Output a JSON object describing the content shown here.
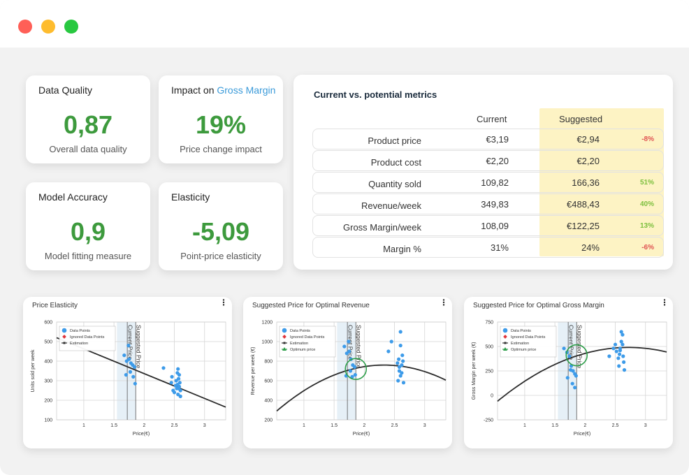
{
  "kpis": {
    "data_quality": {
      "title": "Data Quality",
      "value": "0,87",
      "subtitle": "Overall data quality"
    },
    "gross_margin_impact": {
      "title_prefix": "Impact on ",
      "title_accent": "Gross Margin",
      "value": "19%",
      "subtitle": "Price change impact"
    },
    "model_accuracy": {
      "title": "Model Accuracy",
      "value": "0,9",
      "subtitle": "Model fitting measure"
    },
    "elasticity": {
      "title": "Elasticity",
      "value": "-5,09",
      "subtitle": "Point-price elasticity"
    }
  },
  "metrics": {
    "title": "Current vs. potential metrics",
    "col_current": "Current",
    "col_suggested": "Suggested",
    "rows": [
      {
        "label": "Product price",
        "current": "€3,19",
        "suggested": "€2,94",
        "change": "-8%",
        "direction": "neg"
      },
      {
        "label": "Product cost",
        "current": "€2,20",
        "suggested": "€2,20",
        "change": "",
        "direction": ""
      },
      {
        "label": "Quantity sold",
        "current": "109,82",
        "suggested": "166,36",
        "change": "51%",
        "direction": "pos"
      },
      {
        "label": "Revenue/week",
        "current": "349,83",
        "suggested": "€488,43",
        "change": "40%",
        "direction": "pos"
      },
      {
        "label": "Gross Margin/week",
        "current": "108,09",
        "suggested": "€122,25",
        "change": "13%",
        "direction": "pos"
      },
      {
        "label": "Margin %",
        "current": "31%",
        "suggested": "24%",
        "change": "-6%",
        "direction": "neg"
      }
    ]
  },
  "legend": {
    "data_points": "Data Points",
    "ignored": "Ignored Data Points",
    "estimation": "Estimation",
    "optimum": "Optimum price"
  },
  "vline_labels": {
    "current": "Current Price",
    "suggested": "Suggested Price"
  },
  "colors": {
    "accent": "#3a9ad9",
    "kpi_green": "#3d9a3d",
    "points": "#3d9be9",
    "optimum": "#2e9e4a",
    "suggested_bg": "#fdf3c4"
  },
  "chart_data": [
    {
      "type": "scatter",
      "title": "Price Elasticity",
      "xlabel": "Price(€)",
      "ylabel": "Units sold per week",
      "xlim": [
        0.55,
        3.35
      ],
      "ylim": [
        100,
        600
      ],
      "xticks": [
        1,
        1.5,
        2,
        2.5,
        3
      ],
      "xtick_labels": [
        "1",
        "1.5",
        "2",
        "2.5",
        "3"
      ],
      "yticks": [
        100,
        200,
        300,
        400,
        500,
        600
      ],
      "ytick_labels": [
        "100",
        "200",
        "300",
        "400",
        "500",
        "600"
      ],
      "current_price": 1.72,
      "suggested_price": 1.86,
      "band": [
        1.55,
        1.86
      ],
      "legend_items": [
        "data_points",
        "ignored",
        "estimation"
      ],
      "points": [
        [
          1.67,
          430
        ],
        [
          1.71,
          400
        ],
        [
          1.75,
          410
        ],
        [
          1.78,
          390
        ],
        [
          1.81,
          380
        ],
        [
          1.84,
          370
        ],
        [
          1.7,
          330
        ],
        [
          1.77,
          345
        ],
        [
          1.82,
          320
        ],
        [
          1.85,
          285
        ],
        [
          1.74,
          480
        ],
        [
          2.32,
          365
        ],
        [
          2.45,
          290
        ],
        [
          2.48,
          250
        ],
        [
          2.5,
          240
        ],
        [
          2.52,
          275
        ],
        [
          2.53,
          300
        ],
        [
          2.54,
          260
        ],
        [
          2.55,
          280
        ],
        [
          2.56,
          230
        ],
        [
          2.57,
          310
        ],
        [
          2.58,
          270
        ],
        [
          2.59,
          290
        ],
        [
          2.6,
          250
        ],
        [
          2.56,
          360
        ],
        [
          2.58,
          330
        ],
        [
          2.55,
          340
        ],
        [
          2.57,
          260
        ],
        [
          2.6,
          220
        ],
        [
          2.46,
          320
        ]
      ],
      "estimation": [
        [
          0.55,
          520
        ],
        [
          3.35,
          165
        ]
      ]
    },
    {
      "type": "scatter",
      "title": "Suggested Price for Optimal Revenue",
      "xlabel": "Price(€)",
      "ylabel": "Revenue per week (€)",
      "xlim": [
        0.55,
        3.35
      ],
      "ylim": [
        200,
        1200
      ],
      "xticks": [
        1,
        1.5,
        2,
        2.5,
        3
      ],
      "xtick_labels": [
        "1",
        "1.5",
        "2",
        "2.5",
        "3"
      ],
      "yticks": [
        200,
        400,
        600,
        800,
        1000,
        1200
      ],
      "ytick_labels": [
        "200",
        "400",
        "600",
        "800",
        "1000",
        "1200"
      ],
      "current_price": 1.72,
      "suggested_price": 1.86,
      "band": [
        1.55,
        1.86
      ],
      "legend_items": [
        "data_points",
        "ignored",
        "estimation",
        "optimum"
      ],
      "optimum": [
        1.86,
        720
      ],
      "points": [
        [
          1.67,
          950
        ],
        [
          1.71,
          880
        ],
        [
          1.75,
          900
        ],
        [
          1.78,
          820
        ],
        [
          1.81,
          760
        ],
        [
          1.84,
          740
        ],
        [
          1.7,
          650
        ],
        [
          1.77,
          700
        ],
        [
          1.8,
          640
        ],
        [
          1.85,
          660
        ],
        [
          1.74,
          1000
        ],
        [
          2.4,
          900
        ],
        [
          2.45,
          1000
        ],
        [
          2.55,
          780
        ],
        [
          2.57,
          820
        ],
        [
          2.58,
          700
        ],
        [
          2.6,
          650
        ],
        [
          2.62,
          760
        ],
        [
          2.63,
          860
        ],
        [
          2.65,
          580
        ],
        [
          2.56,
          600
        ],
        [
          2.6,
          1100
        ],
        [
          2.6,
          960
        ],
        [
          2.58,
          740
        ],
        [
          2.62,
          680
        ],
        [
          2.64,
          800
        ]
      ],
      "estimation_curve": {
        "peak_x": 2.33,
        "peak_y": 760,
        "start_x": 0.55,
        "start_y": 290
      }
    },
    {
      "type": "scatter",
      "title": "Suggested Price for Optimal Gross Margin",
      "xlabel": "Price(€)",
      "ylabel": "Gross Margin per week (€)",
      "xlim": [
        0.55,
        3.35
      ],
      "ylim": [
        -250,
        750
      ],
      "xticks": [
        1,
        1.5,
        2,
        2.5,
        3
      ],
      "xtick_labels": [
        "1",
        "1.5",
        "2",
        "2.5",
        "3"
      ],
      "yticks": [
        -250,
        0,
        250,
        500,
        750
      ],
      "ytick_labels": [
        "-250",
        "0",
        "250",
        "500",
        "750"
      ],
      "current_price": 1.72,
      "suggested_price": 1.86,
      "band": [
        1.55,
        1.86
      ],
      "legend_items": [
        "data_points",
        "ignored",
        "estimation",
        "optimum"
      ],
      "optimum": [
        1.86,
        410
      ],
      "points": [
        [
          1.65,
          480
        ],
        [
          1.7,
          440
        ],
        [
          1.74,
          400
        ],
        [
          1.77,
          300
        ],
        [
          1.8,
          250
        ],
        [
          1.83,
          220
        ],
        [
          1.71,
          180
        ],
        [
          1.79,
          120
        ],
        [
          1.83,
          80
        ],
        [
          1.85,
          200
        ],
        [
          1.76,
          260
        ],
        [
          2.4,
          400
        ],
        [
          2.47,
          480
        ],
        [
          2.5,
          520
        ],
        [
          2.52,
          450
        ],
        [
          2.55,
          380
        ],
        [
          2.57,
          420
        ],
        [
          2.58,
          460
        ],
        [
          2.6,
          550
        ],
        [
          2.62,
          620
        ],
        [
          2.63,
          400
        ],
        [
          2.65,
          260
        ],
        [
          2.56,
          300
        ],
        [
          2.6,
          650
        ],
        [
          2.58,
          480
        ],
        [
          2.62,
          520
        ],
        [
          2.64,
          340
        ]
      ],
      "estimation_curve": {
        "peak_x": 2.72,
        "peak_y": 490,
        "start_x": 0.55,
        "start_y": -60
      }
    }
  ]
}
